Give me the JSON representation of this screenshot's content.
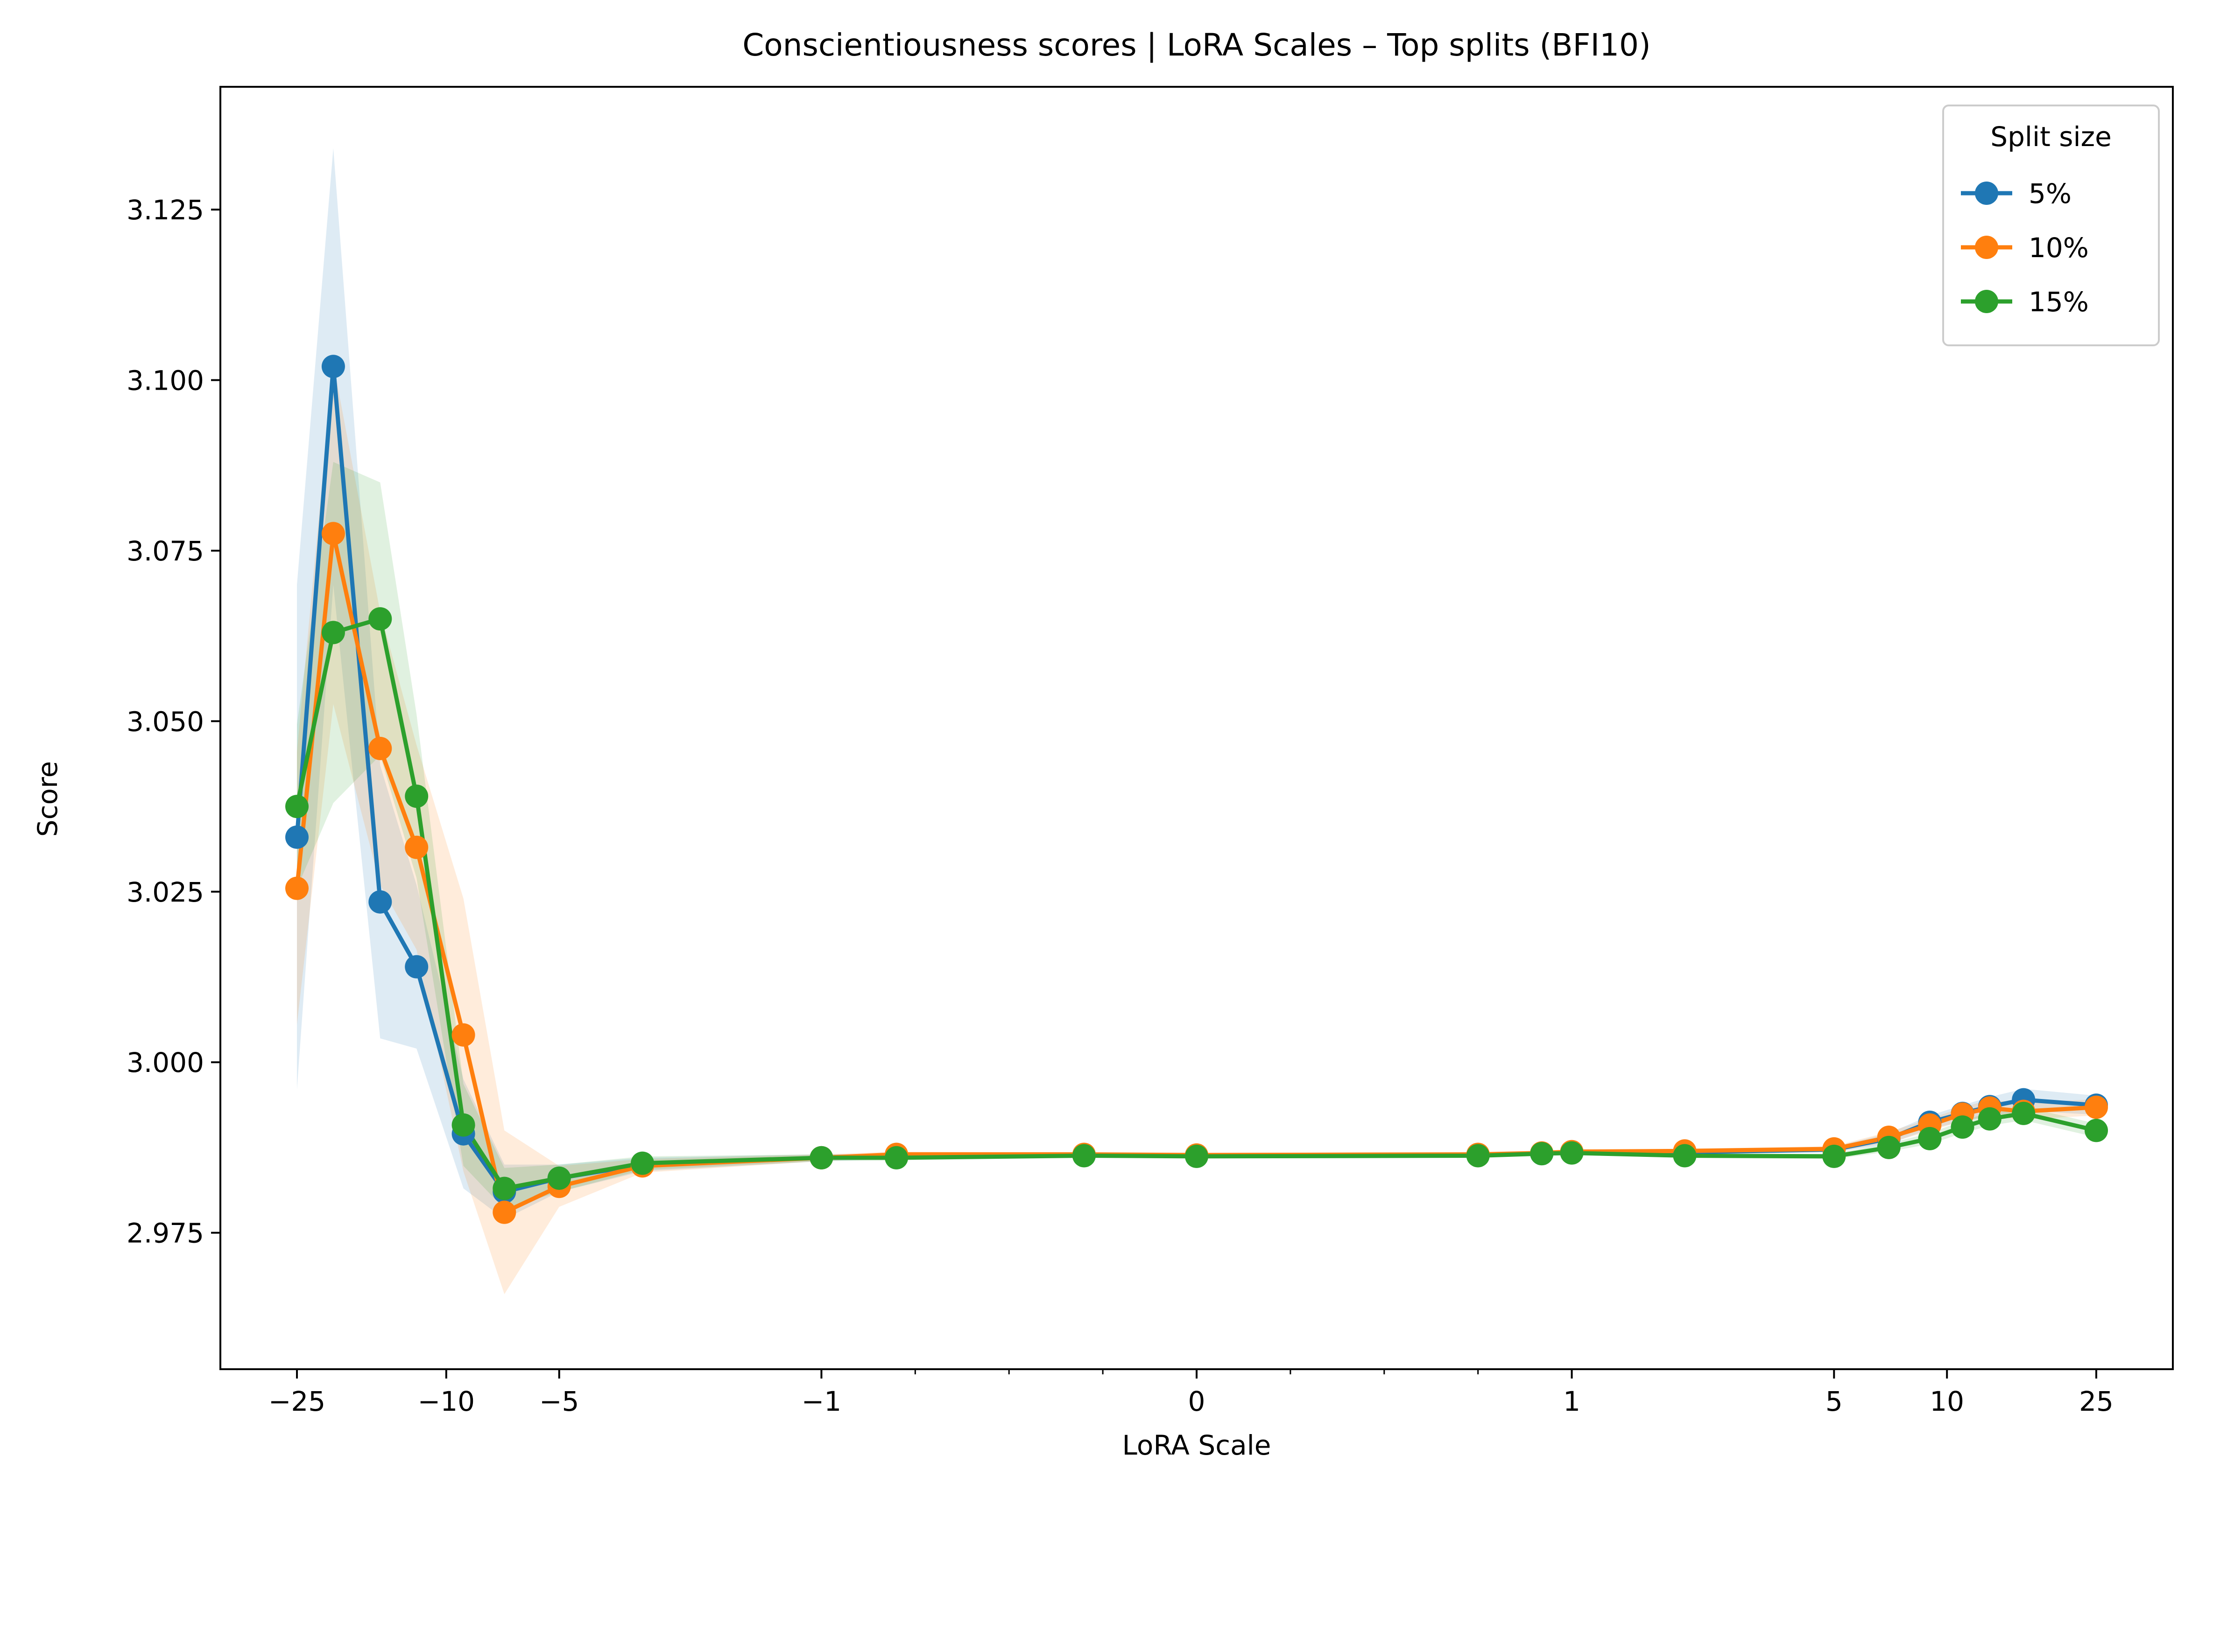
{
  "chart_data": {
    "type": "line",
    "title": "Conscientiousness scores | LoRA Scales – Top splits (BFI10)",
    "xlabel": "LoRA Scale",
    "ylabel": "Score",
    "xscale": "symlog",
    "xscale_linthresh": 1,
    "xlim": [
      -40,
      40
    ],
    "ylim": [
      2.955,
      3.143
    ],
    "grid": false,
    "legend": {
      "title": "Split size",
      "placement": "top-right"
    },
    "x_ticks": [
      {
        "value": -25,
        "label": "−25"
      },
      {
        "value": -10,
        "label": "−10"
      },
      {
        "value": -5,
        "label": "−5"
      },
      {
        "value": -1,
        "label": "−1"
      },
      {
        "value": 0,
        "label": "0"
      },
      {
        "value": 1,
        "label": "1"
      },
      {
        "value": 5,
        "label": "5"
      },
      {
        "value": 10,
        "label": "10"
      },
      {
        "value": 25,
        "label": "25"
      }
    ],
    "x_minor_ticks": [
      -0.75,
      -0.5,
      -0.25,
      0.25,
      0.5,
      0.75
    ],
    "y_ticks": [
      {
        "value": 2.975,
        "label": "2.975"
      },
      {
        "value": 3.0,
        "label": "3.000"
      },
      {
        "value": 3.025,
        "label": "3.025"
      },
      {
        "value": 3.05,
        "label": "3.050"
      },
      {
        "value": 3.075,
        "label": "3.075"
      },
      {
        "value": 3.1,
        "label": "3.100"
      },
      {
        "value": 3.125,
        "label": "3.125"
      }
    ],
    "x": [
      -25,
      -20,
      -15,
      -12,
      -9,
      -7,
      -5,
      -3,
      -1,
      -0.8,
      -0.3,
      0,
      0.75,
      0.92,
      1,
      2,
      5,
      7,
      9,
      11,
      13,
      16,
      25
    ],
    "series": [
      {
        "name": "5%",
        "color": "#1f77b4",
        "values": [
          3.033,
          3.102,
          3.0235,
          3.014,
          2.9895,
          2.981,
          2.983,
          2.985,
          2.986,
          2.9862,
          2.9864,
          2.9863,
          2.9864,
          2.9866,
          2.9868,
          2.9868,
          2.9872,
          2.9888,
          2.9912,
          2.9925,
          2.9935,
          2.9945,
          2.9937
        ],
        "band": [
          0.037,
          0.032,
          0.02,
          0.012,
          0.008,
          0.004,
          0.002,
          0.001,
          0.0005,
          0.0004,
          0.0003,
          0.0003,
          0.0003,
          0.0003,
          0.0003,
          0.0003,
          0.0004,
          0.0008,
          0.001,
          0.0012,
          0.0014,
          0.0016,
          0.0014
        ]
      },
      {
        "name": "10%",
        "color": "#ff7f0e",
        "values": [
          3.0255,
          3.0775,
          3.046,
          3.0315,
          3.004,
          2.978,
          2.9818,
          2.9848,
          2.986,
          2.9865,
          2.9865,
          2.9864,
          2.9865,
          2.9867,
          2.9869,
          2.987,
          2.9873,
          2.989,
          2.9908,
          2.9924,
          2.9933,
          2.9928,
          2.9934
        ],
        "band": [
          0.02,
          0.025,
          0.02,
          0.015,
          0.02,
          0.012,
          0.003,
          0.001,
          0.0005,
          0.0004,
          0.0003,
          0.0003,
          0.0003,
          0.0003,
          0.0003,
          0.0003,
          0.0004,
          0.0008,
          0.0009,
          0.001,
          0.0012,
          0.0012,
          0.0012
        ]
      },
      {
        "name": "15%",
        "color": "#2ca02c",
        "values": [
          3.0375,
          3.063,
          3.065,
          3.039,
          2.9908,
          2.9815,
          2.983,
          2.9852,
          2.986,
          2.986,
          2.9863,
          2.9862,
          2.9863,
          2.9866,
          2.9867,
          2.9863,
          2.9862,
          2.9875,
          2.9888,
          2.9905,
          2.9917,
          2.9925,
          2.99
        ],
        "band": [
          0.012,
          0.025,
          0.02,
          0.012,
          0.006,
          0.003,
          0.002,
          0.001,
          0.0005,
          0.0004,
          0.0003,
          0.0003,
          0.0003,
          0.0003,
          0.0003,
          0.0003,
          0.0004,
          0.0006,
          0.0008,
          0.0009,
          0.001,
          0.001,
          0.001
        ]
      }
    ]
  }
}
